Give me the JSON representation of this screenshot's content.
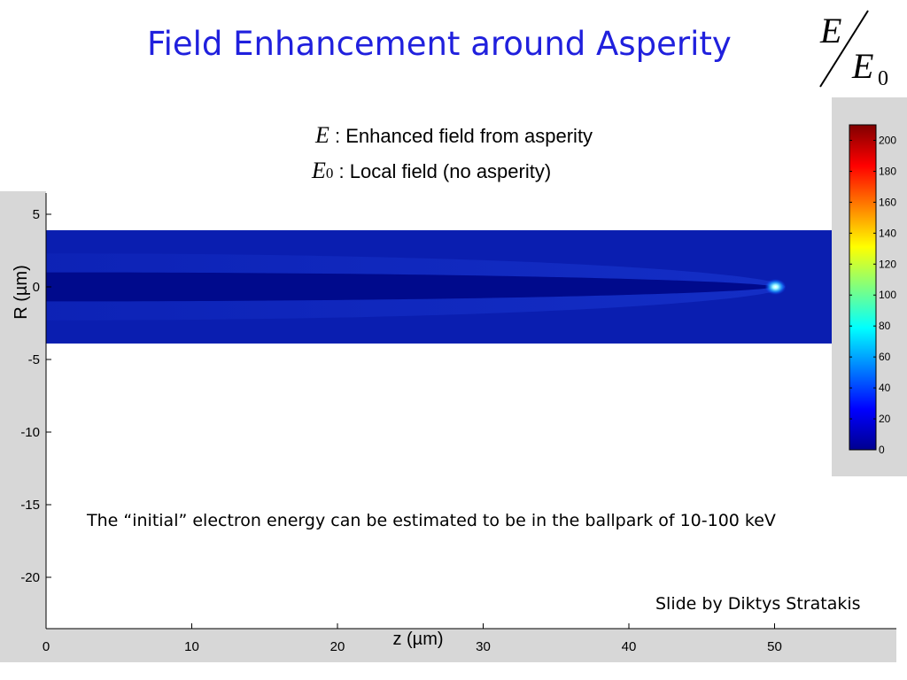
{
  "slide": {
    "title": "Field Enhancement around Asperity",
    "ratio_symbol": {
      "numerator": "E",
      "denominator": "E",
      "denominator_subscript": "0"
    },
    "legend": [
      {
        "symbol": "E",
        "subscript": "",
        "text": ": Enhanced field from asperity"
      },
      {
        "symbol": "E",
        "subscript": "0",
        "text": ": Local field (no asperity)"
      }
    ],
    "note": "The “initial” electron energy can be estimated to be in the ballpark of  10-100 keV",
    "credit": "Slide by Diktys Stratakis"
  },
  "chart_data": {
    "type": "heatmap",
    "xlabel": "z (µm)",
    "ylabel": "R (µm)",
    "xlim": [
      0,
      58
    ],
    "ylim": [
      -23,
      7
    ],
    "x_ticks": [
      0,
      10,
      20,
      30,
      40,
      50
    ],
    "y_ticks": [
      5,
      0,
      -5,
      -10,
      -15,
      -20
    ],
    "field_region": {
      "z_range": [
        0,
        54
      ],
      "r_range": [
        -3.9,
        3.9
      ]
    },
    "asperity": {
      "tip_z": 50,
      "base_z": 0,
      "base_half_width_r": 1.0
    },
    "peak_value": 200,
    "colorbar": {
      "min": 0,
      "max": 210,
      "ticks": [
        0,
        20,
        40,
        60,
        80,
        100,
        120,
        140,
        160,
        180,
        200
      ]
    },
    "colors": {
      "axis_panel": "#d7d7d7",
      "field_bg": "#0a1eb0",
      "asperity": "#000a8c",
      "halo": "#1530c8",
      "tip_glow": "#9ffcff",
      "title": "#2020dd"
    }
  }
}
